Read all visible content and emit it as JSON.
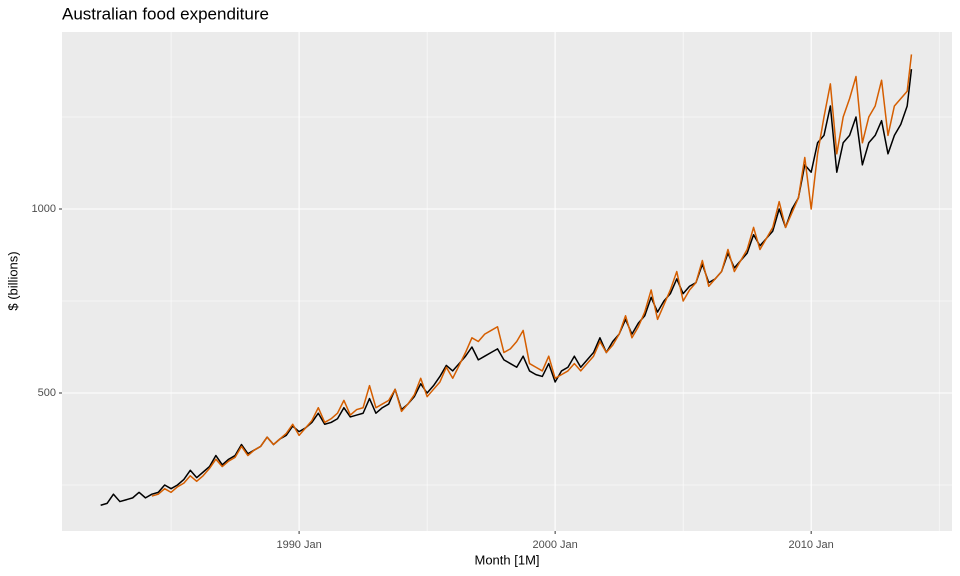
{
  "chart_data": {
    "type": "line",
    "title": "Australian food expenditure",
    "x_label": "Month [1M]",
    "y_label": "$ (billions)",
    "x": [
      "1982 Apr",
      "1982 Jul",
      "1982 Oct",
      "1983 Jan",
      "1983 Apr",
      "1983 Jul",
      "1983 Oct",
      "1984 Jan",
      "1984 Apr",
      "1984 Jul",
      "1984 Oct",
      "1985 Jan",
      "1985 Apr",
      "1985 Jul",
      "1985 Oct",
      "1986 Jan",
      "1986 Apr",
      "1986 Jul",
      "1986 Oct",
      "1987 Jan",
      "1987 Apr",
      "1987 Jul",
      "1987 Oct",
      "1988 Jan",
      "1988 Apr",
      "1988 Jul",
      "1988 Oct",
      "1989 Jan",
      "1989 Apr",
      "1989 Jul",
      "1989 Oct",
      "1990 Jan",
      "1990 Apr",
      "1990 Jul",
      "1990 Oct",
      "1991 Jan",
      "1991 Apr",
      "1991 Jul",
      "1991 Oct",
      "1992 Jan",
      "1992 Apr",
      "1992 Jul",
      "1992 Oct",
      "1993 Jan",
      "1993 Apr",
      "1993 Jul",
      "1993 Oct",
      "1994 Jan",
      "1994 Apr",
      "1994 Jul",
      "1994 Oct",
      "1995 Jan",
      "1995 Apr",
      "1995 Jul",
      "1995 Oct",
      "1996 Jan",
      "1996 Apr",
      "1996 Jul",
      "1996 Oct",
      "1997 Jan",
      "1997 Apr",
      "1997 Jul",
      "1997 Oct",
      "1998 Jan",
      "1998 Apr",
      "1998 Jul",
      "1998 Oct",
      "1999 Jan",
      "1999 Apr",
      "1999 Jul",
      "1999 Oct",
      "2000 Jan",
      "2000 Apr",
      "2000 Jul",
      "2000 Oct",
      "2001 Jan",
      "2001 Apr",
      "2001 Jul",
      "2001 Oct",
      "2002 Jan",
      "2002 Apr",
      "2002 Jul",
      "2002 Oct",
      "2003 Jan",
      "2003 Apr",
      "2003 Jul",
      "2003 Oct",
      "2004 Jan",
      "2004 Apr",
      "2004 Jul",
      "2004 Oct",
      "2005 Jan",
      "2005 Apr",
      "2005 Jul",
      "2005 Oct",
      "2006 Jan",
      "2006 Apr",
      "2006 Jul",
      "2006 Oct",
      "2007 Jan",
      "2007 Apr",
      "2007 Jul",
      "2007 Oct",
      "2008 Jan",
      "2008 Apr",
      "2008 Jul",
      "2008 Oct",
      "2009 Jan",
      "2009 Apr",
      "2009 Jul",
      "2009 Oct",
      "2010 Jan",
      "2010 Apr",
      "2010 Jul",
      "2010 Oct",
      "2011 Jan",
      "2011 Apr",
      "2011 Jul",
      "2011 Oct",
      "2012 Jan",
      "2012 Apr",
      "2012 Jul",
      "2012 Oct",
      "2013 Jan",
      "2013 Apr",
      "2013 Jul",
      "2013 Oct",
      "2013 Dec"
    ],
    "series": [
      {
        "color": "#000000",
        "values": [
          195,
          200,
          225,
          205,
          210,
          215,
          230,
          215,
          225,
          230,
          250,
          240,
          250,
          265,
          290,
          270,
          285,
          300,
          330,
          305,
          320,
          330,
          360,
          335,
          345,
          355,
          380,
          360,
          375,
          385,
          410,
          395,
          405,
          420,
          445,
          415,
          420,
          430,
          460,
          435,
          440,
          445,
          485,
          445,
          460,
          470,
          510,
          455,
          470,
          490,
          525,
          500,
          520,
          545,
          575,
          560,
          580,
          600,
          625,
          590,
          600,
          610,
          620,
          590,
          580,
          570,
          600,
          560,
          550,
          545,
          580,
          530,
          560,
          570,
          600,
          570,
          590,
          610,
          650,
          610,
          640,
          660,
          700,
          660,
          690,
          710,
          760,
          720,
          750,
          770,
          810,
          770,
          790,
          800,
          850,
          800,
          810,
          830,
          880,
          840,
          860,
          880,
          930,
          900,
          920,
          940,
          1000,
          950,
          1000,
          1030,
          1120,
          1100,
          1180,
          1200,
          1280,
          1100,
          1180,
          1200,
          1250,
          1120,
          1180,
          1200,
          1240,
          1150,
          1200,
          1230,
          1280,
          1380
        ]
      },
      {
        "color": "#D55E00",
        "values": [
          null,
          null,
          null,
          null,
          null,
          null,
          null,
          null,
          220,
          225,
          240,
          230,
          245,
          255,
          275,
          260,
          275,
          295,
          320,
          300,
          315,
          325,
          355,
          330,
          345,
          355,
          380,
          360,
          375,
          390,
          415,
          385,
          405,
          425,
          460,
          420,
          430,
          445,
          480,
          440,
          455,
          460,
          520,
          460,
          470,
          480,
          510,
          450,
          470,
          495,
          540,
          490,
          510,
          530,
          570,
          540,
          575,
          610,
          650,
          640,
          660,
          670,
          680,
          610,
          620,
          640,
          670,
          580,
          570,
          560,
          600,
          540,
          550,
          560,
          580,
          560,
          580,
          600,
          640,
          610,
          630,
          660,
          710,
          650,
          680,
          720,
          780,
          700,
          740,
          780,
          830,
          750,
          780,
          800,
          860,
          790,
          810,
          830,
          890,
          830,
          860,
          890,
          950,
          890,
          920,
          950,
          1020,
          950,
          990,
          1030,
          1140,
          1000,
          1150,
          1250,
          1340,
          1150,
          1250,
          1300,
          1360,
          1180,
          1250,
          1280,
          1350,
          1200,
          1280,
          1300,
          1320,
          1420
        ]
      }
    ],
    "xlim": [
      1980.74,
      2015.5
    ],
    "xticks": [
      {
        "value": 1990,
        "label": "1990 Jan"
      },
      {
        "value": 2000,
        "label": "2000 Jan"
      },
      {
        "value": 2010,
        "label": "2010 Jan"
      }
    ],
    "x_minor_grid": [
      1985,
      1995,
      2005,
      2015
    ],
    "ylim": [
      125,
      1481
    ],
    "yticks": [
      500,
      1000
    ],
    "y_minor_grid": [
      250,
      750,
      1250
    ],
    "grid": true
  }
}
